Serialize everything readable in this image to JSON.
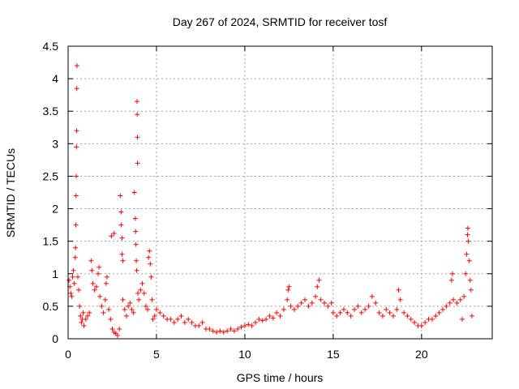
{
  "chart_data": {
    "type": "scatter",
    "title": "Day 267 of 2024, SRMTID for receiver tosf",
    "xlabel": "GPS time / hours",
    "ylabel": "SRMTID / TECUs",
    "xlim": [
      0,
      24
    ],
    "ylim": [
      0,
      4.5
    ],
    "xticks": [
      "0",
      "5",
      "10",
      "15",
      "20"
    ],
    "xtick_values": [
      0,
      5,
      10,
      15,
      20
    ],
    "yticks": [
      "0",
      "0.5",
      "1",
      "1.5",
      "2",
      "2.5",
      "3",
      "3.5",
      "4",
      "4.5"
    ],
    "ytick_values": [
      0,
      0.5,
      1,
      1.5,
      2,
      2.5,
      3,
      3.5,
      4,
      4.5
    ],
    "grid": true,
    "marker": "+",
    "marker_color": "#ff0000",
    "series": [
      {
        "name": "SRMTID",
        "points": [
          [
            0.05,
            0.9
          ],
          [
            0.1,
            0.8
          ],
          [
            0.15,
            0.7
          ],
          [
            0.2,
            0.65
          ],
          [
            0.25,
            0.95
          ],
          [
            0.3,
            1.05
          ],
          [
            0.35,
            0.85
          ],
          [
            0.4,
            1.25
          ],
          [
            0.42,
            1.4
          ],
          [
            0.44,
            1.75
          ],
          [
            0.45,
            2.2
          ],
          [
            0.46,
            2.5
          ],
          [
            0.47,
            2.95
          ],
          [
            0.48,
            3.2
          ],
          [
            0.49,
            3.85
          ],
          [
            0.5,
            4.2
          ],
          [
            0.55,
            0.95
          ],
          [
            0.6,
            0.75
          ],
          [
            0.65,
            0.5
          ],
          [
            0.7,
            0.35
          ],
          [
            0.75,
            0.25
          ],
          [
            0.8,
            0.3
          ],
          [
            0.85,
            0.4
          ],
          [
            0.9,
            0.2
          ],
          [
            1.0,
            0.3
          ],
          [
            1.1,
            0.35
          ],
          [
            1.2,
            0.4
          ],
          [
            1.3,
            1.2
          ],
          [
            1.35,
            1.05
          ],
          [
            1.4,
            0.85
          ],
          [
            1.5,
            0.75
          ],
          [
            1.6,
            0.8
          ],
          [
            1.7,
            1.0
          ],
          [
            1.75,
            1.1
          ],
          [
            1.8,
            0.65
          ],
          [
            1.9,
            0.5
          ],
          [
            2.0,
            0.4
          ],
          [
            2.1,
            0.6
          ],
          [
            2.15,
            0.85
          ],
          [
            2.2,
            0.95
          ],
          [
            2.3,
            0.45
          ],
          [
            2.4,
            0.3
          ],
          [
            2.45,
            1.58
          ],
          [
            2.5,
            0.15
          ],
          [
            2.6,
            1.62
          ],
          [
            2.6,
            0.1
          ],
          [
            2.7,
            0.08
          ],
          [
            2.8,
            0.05
          ],
          [
            2.9,
            0.15
          ],
          [
            2.95,
            2.2
          ],
          [
            3.0,
            1.95
          ],
          [
            3.0,
            1.75
          ],
          [
            3.05,
            1.55
          ],
          [
            3.05,
            1.3
          ],
          [
            3.1,
            1.2
          ],
          [
            3.1,
            0.6
          ],
          [
            3.2,
            0.45
          ],
          [
            3.3,
            0.35
          ],
          [
            3.4,
            0.5
          ],
          [
            3.5,
            0.55
          ],
          [
            3.6,
            0.45
          ],
          [
            3.7,
            0.4
          ],
          [
            3.75,
            2.25
          ],
          [
            3.8,
            1.85
          ],
          [
            3.82,
            1.65
          ],
          [
            3.84,
            1.45
          ],
          [
            3.86,
            1.2
          ],
          [
            3.88,
            1.05
          ],
          [
            3.9,
            3.65
          ],
          [
            3.91,
            3.45
          ],
          [
            3.92,
            3.1
          ],
          [
            3.93,
            2.7
          ],
          [
            3.95,
            0.7
          ],
          [
            4.0,
            0.6
          ],
          [
            4.1,
            0.75
          ],
          [
            4.2,
            0.85
          ],
          [
            4.3,
            0.7
          ],
          [
            4.4,
            0.5
          ],
          [
            4.5,
            0.45
          ],
          [
            4.55,
            1.25
          ],
          [
            4.6,
            1.35
          ],
          [
            4.65,
            1.15
          ],
          [
            4.7,
            0.95
          ],
          [
            4.75,
            0.6
          ],
          [
            4.8,
            0.3
          ],
          [
            4.9,
            0.35
          ],
          [
            5.0,
            0.45
          ],
          [
            5.2,
            0.4
          ],
          [
            5.4,
            0.35
          ],
          [
            5.6,
            0.3
          ],
          [
            5.8,
            0.3
          ],
          [
            6.0,
            0.25
          ],
          [
            6.2,
            0.3
          ],
          [
            6.4,
            0.35
          ],
          [
            6.6,
            0.25
          ],
          [
            6.8,
            0.3
          ],
          [
            7.0,
            0.25
          ],
          [
            7.2,
            0.2
          ],
          [
            7.4,
            0.2
          ],
          [
            7.6,
            0.25
          ],
          [
            7.8,
            0.15
          ],
          [
            8.0,
            0.15
          ],
          [
            8.2,
            0.12
          ],
          [
            8.4,
            0.1
          ],
          [
            8.6,
            0.12
          ],
          [
            8.8,
            0.1
          ],
          [
            9.0,
            0.12
          ],
          [
            9.2,
            0.15
          ],
          [
            9.4,
            0.12
          ],
          [
            9.6,
            0.15
          ],
          [
            9.8,
            0.18
          ],
          [
            10.0,
            0.2
          ],
          [
            10.2,
            0.22
          ],
          [
            10.4,
            0.2
          ],
          [
            10.6,
            0.25
          ],
          [
            10.8,
            0.3
          ],
          [
            11.0,
            0.28
          ],
          [
            11.2,
            0.3
          ],
          [
            11.4,
            0.35
          ],
          [
            11.6,
            0.32
          ],
          [
            11.8,
            0.4
          ],
          [
            12.0,
            0.35
          ],
          [
            12.2,
            0.45
          ],
          [
            12.4,
            0.6
          ],
          [
            12.45,
            0.75
          ],
          [
            12.5,
            0.8
          ],
          [
            12.6,
            0.5
          ],
          [
            12.8,
            0.45
          ],
          [
            13.0,
            0.5
          ],
          [
            13.2,
            0.55
          ],
          [
            13.4,
            0.6
          ],
          [
            13.6,
            0.5
          ],
          [
            13.8,
            0.55
          ],
          [
            14.0,
            0.65
          ],
          [
            14.1,
            0.8
          ],
          [
            14.2,
            0.9
          ],
          [
            14.3,
            0.6
          ],
          [
            14.5,
            0.55
          ],
          [
            14.7,
            0.5
          ],
          [
            14.9,
            0.55
          ],
          [
            15.0,
            0.4
          ],
          [
            15.2,
            0.35
          ],
          [
            15.4,
            0.4
          ],
          [
            15.6,
            0.45
          ],
          [
            15.8,
            0.4
          ],
          [
            16.0,
            0.35
          ],
          [
            16.2,
            0.45
          ],
          [
            16.4,
            0.5
          ],
          [
            16.6,
            0.4
          ],
          [
            16.8,
            0.45
          ],
          [
            17.0,
            0.5
          ],
          [
            17.2,
            0.65
          ],
          [
            17.4,
            0.55
          ],
          [
            17.6,
            0.4
          ],
          [
            17.8,
            0.35
          ],
          [
            18.0,
            0.45
          ],
          [
            18.2,
            0.4
          ],
          [
            18.4,
            0.35
          ],
          [
            18.6,
            0.45
          ],
          [
            18.7,
            0.75
          ],
          [
            18.8,
            0.6
          ],
          [
            19.0,
            0.4
          ],
          [
            19.2,
            0.35
          ],
          [
            19.4,
            0.3
          ],
          [
            19.6,
            0.25
          ],
          [
            19.8,
            0.2
          ],
          [
            20.0,
            0.2
          ],
          [
            20.2,
            0.25
          ],
          [
            20.4,
            0.3
          ],
          [
            20.6,
            0.3
          ],
          [
            20.8,
            0.35
          ],
          [
            21.0,
            0.4
          ],
          [
            21.2,
            0.45
          ],
          [
            21.4,
            0.5
          ],
          [
            21.6,
            0.55
          ],
          [
            21.7,
            0.9
          ],
          [
            21.75,
            1.0
          ],
          [
            21.8,
            0.6
          ],
          [
            22.0,
            0.55
          ],
          [
            22.2,
            0.6
          ],
          [
            22.3,
            0.3
          ],
          [
            22.4,
            0.65
          ],
          [
            22.5,
            1.0
          ],
          [
            22.55,
            1.3
          ],
          [
            22.6,
            1.6
          ],
          [
            22.62,
            1.7
          ],
          [
            22.65,
            1.5
          ],
          [
            22.7,
            1.2
          ],
          [
            22.75,
            0.9
          ],
          [
            22.8,
            0.75
          ],
          [
            22.85,
            0.35
          ]
        ]
      }
    ]
  }
}
